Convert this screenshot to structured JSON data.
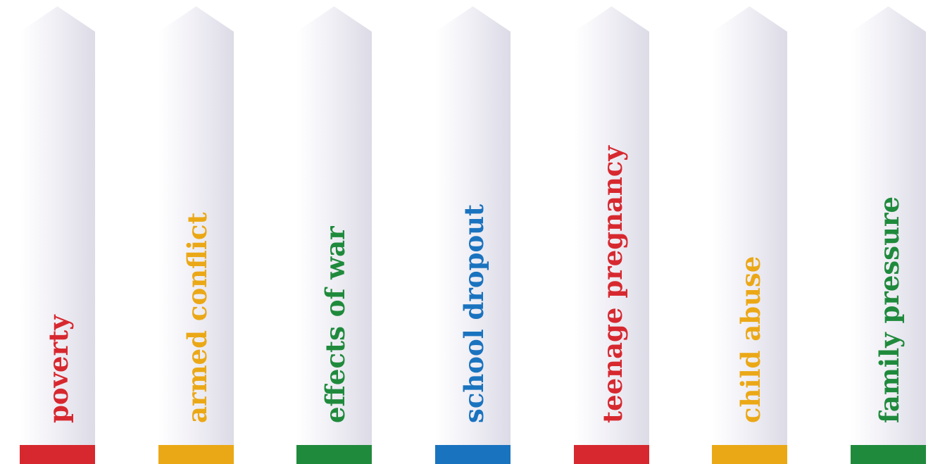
{
  "pillars": [
    {
      "label": "poverty",
      "color": "#d7282f"
    },
    {
      "label": "armed conflict",
      "color": "#eba816"
    },
    {
      "label": "effects of war",
      "color": "#1f8a3c"
    },
    {
      "label": "school dropout",
      "color": "#1a73bf"
    },
    {
      "label": "teenage pregnancy",
      "color": "#d7282f"
    },
    {
      "label": "child abuse",
      "color": "#eba816"
    },
    {
      "label": "family pressure",
      "color": "#1f8a3c"
    }
  ]
}
